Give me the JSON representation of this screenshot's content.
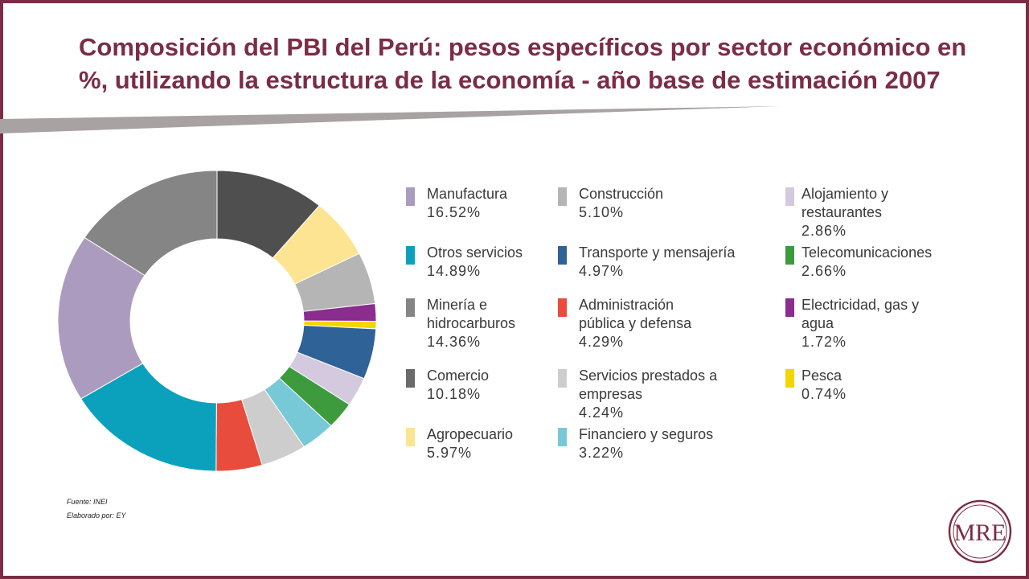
{
  "title": "Composición del PBI del Perú: pesos específicos por sector económico en %, utilizando la estructura de la economía - año base de estimación 2007",
  "source": "Fuente: INEI",
  "prepared_by": "Elaborado por: EY",
  "logo_text": "MRE",
  "colors": {
    "brand": "#7b2d45",
    "swoosh": "#a8a2a2"
  },
  "chart_data": {
    "type": "pie",
    "style": "donut",
    "title": "",
    "slices": [
      {
        "label": "Comercio",
        "value": 10.18,
        "display": "10.18%",
        "color": "#4f4f4f"
      },
      {
        "label": "Agropecuario",
        "value": 5.97,
        "display": "5.97%",
        "color": "#fce492"
      },
      {
        "label": "Construcción",
        "value": 5.1,
        "display": "5.10%",
        "color": "#b5b5b5"
      },
      {
        "label": "Electricidad, gas y agua",
        "value": 1.72,
        "display": "1.72%",
        "color": "#8b2c8f"
      },
      {
        "label": "Pesca",
        "value": 0.74,
        "display": "0.74%",
        "color": "#f2d600"
      },
      {
        "label": "Transporte y mensajería",
        "value": 4.97,
        "display": "4.97%",
        "color": "#2f6296"
      },
      {
        "label": "Alojamiento y restaurantes",
        "value": 2.86,
        "display": "2.86%",
        "color": "#d4c9de"
      },
      {
        "label": "Telecomunicaciones",
        "value": 2.66,
        "display": "2.66%",
        "color": "#3d9a3d"
      },
      {
        "label": "Financiero y seguros",
        "value": 3.22,
        "display": "3.22%",
        "color": "#77c9d8"
      },
      {
        "label": "Servicios prestados a empresas",
        "value": 4.24,
        "display": "4.24%",
        "color": "#cdcdcd"
      },
      {
        "label": "Administración pública y defensa",
        "value": 4.29,
        "display": "4.29%",
        "color": "#e84c3d"
      },
      {
        "label": "Otros servicios",
        "value": 14.89,
        "display": "14.89%",
        "color": "#0ba1bd"
      },
      {
        "label": "Manufactura",
        "value": 16.52,
        "display": "16.52%",
        "color": "#ab9cbf"
      },
      {
        "label": "Minería e hidrocarburos",
        "value": 14.36,
        "display": "14.36%",
        "color": "#858585"
      }
    ]
  },
  "legend": [
    {
      "label": "Manufactura",
      "value": "16.52%",
      "color": "#ab9cbf"
    },
    {
      "label": "Otros servicios",
      "value": "14.89%",
      "color": "#0ba1bd"
    },
    {
      "label": "Minería e hidrocarburos",
      "value": "14.36%",
      "color": "#858585"
    },
    {
      "label": "Comercio",
      "value": "10.18%",
      "color": "#6a6a6a"
    },
    {
      "label": "Agropecuario",
      "value": "5.97%",
      "color": "#fce492"
    },
    {
      "label": "Construcción",
      "value": "5.10%",
      "color": "#b5b5b5"
    },
    {
      "label": "Transporte y mensajería",
      "value": "4.97%",
      "color": "#2f6296"
    },
    {
      "label": "Administración pública y defensa",
      "value": "4.29%",
      "color": "#e84c3d"
    },
    {
      "label": "Servicios prestados a empresas",
      "value": "4.24%",
      "color": "#cdcdcd"
    },
    {
      "label": "Financiero y seguros",
      "value": "3.22%",
      "color": "#77c9d8"
    },
    {
      "label": "Alojamiento y restaurantes",
      "value": "2.86%",
      "color": "#d4c9de"
    },
    {
      "label": "Telecomunicaciones",
      "value": "2.66%",
      "color": "#3d9a3d"
    },
    {
      "label": "Electricidad, gas y agua",
      "value": "1.72%",
      "color": "#8b2c8f"
    },
    {
      "label": "Pesca",
      "value": "0.74%",
      "color": "#f2d600"
    }
  ]
}
